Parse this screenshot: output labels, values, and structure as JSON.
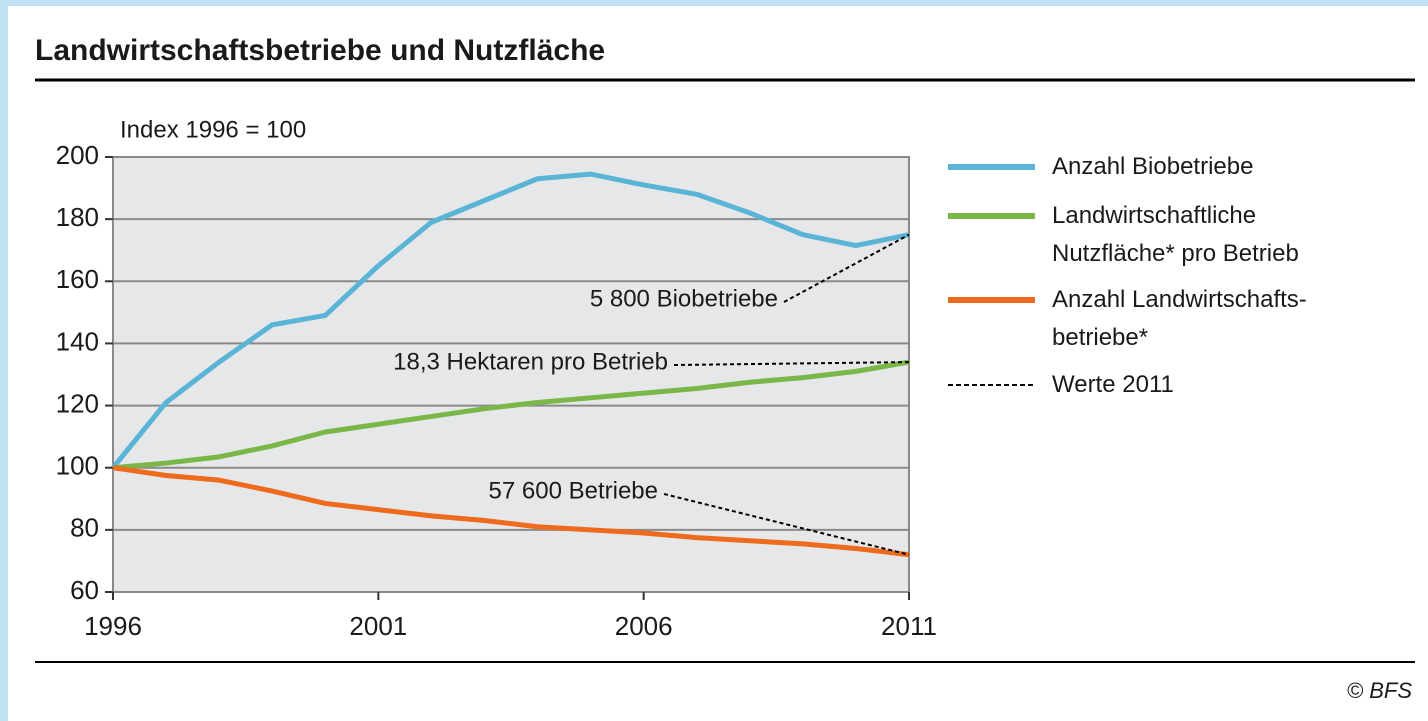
{
  "chart_data": {
    "type": "line",
    "title": "Landwirtschaftsbetriebe und Nutzfläche",
    "y_label": "Index 1996 = 100",
    "x": [
      1996,
      1997,
      1998,
      1999,
      2000,
      2001,
      2002,
      2003,
      2004,
      2005,
      2006,
      2007,
      2008,
      2009,
      2010,
      2011
    ],
    "series": [
      {
        "name": "Anzahl Biobetriebe",
        "color": "#5ab4d6",
        "values": [
          100,
          121,
          134,
          146,
          149,
          165,
          179,
          186,
          193,
          194.5,
          191,
          188,
          182,
          175,
          171.5,
          175
        ]
      },
      {
        "name": "Landwirtschaftliche\nNutzfläche* pro Betrieb",
        "color": "#7ab648",
        "values": [
          100,
          101.5,
          103.5,
          107,
          111.5,
          114,
          116.5,
          119,
          121,
          122.5,
          124,
          125.5,
          127.5,
          129,
          131,
          134
        ]
      },
      {
        "name": "Anzahl Landwirtschafts-\nbetriebe*",
        "color": "#ee6a1c",
        "values": [
          100,
          97.5,
          96,
          92.5,
          88.5,
          86.5,
          84.5,
          83,
          81,
          80,
          79,
          77.5,
          76.5,
          75.5,
          74,
          72
        ]
      }
    ],
    "annotations": [
      "5 800 Biobetriebe",
      "18,3 Hektaren pro Betrieb",
      "57 600 Betriebe"
    ],
    "reference_legend": "Werte 2011",
    "xlim": [
      1996,
      2011
    ],
    "xticks": [
      1996,
      2001,
      2006,
      2011
    ],
    "ylim": [
      60,
      200
    ],
    "yticks": [
      60,
      80,
      100,
      120,
      140,
      160,
      180,
      200
    ],
    "grid": true,
    "source": "© BFS"
  }
}
